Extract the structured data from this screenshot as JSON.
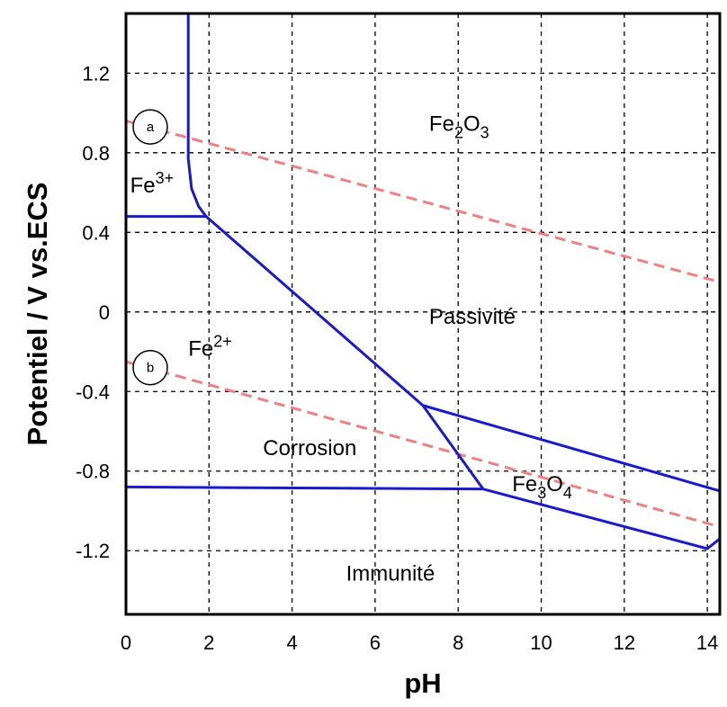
{
  "chart_data": {
    "type": "line",
    "title": "",
    "xlabel": "pH",
    "ylabel": "Potentiel / V vs.ECS",
    "xlim": [
      0,
      14.3
    ],
    "ylim": [
      -1.52,
      1.5
    ],
    "grid": true,
    "x_ticks": [
      {
        "value": 0,
        "label": "0"
      },
      {
        "value": 2,
        "label": "2"
      },
      {
        "value": 4,
        "label": "4"
      },
      {
        "value": 6,
        "label": "6"
      },
      {
        "value": 8,
        "label": "8"
      },
      {
        "value": 10,
        "label": "10"
      },
      {
        "value": 12,
        "label": "12"
      },
      {
        "value": 14,
        "label": "14"
      }
    ],
    "y_ticks": [
      {
        "value": 1.2,
        "label": "1.2"
      },
      {
        "value": 0.8,
        "label": "0.8"
      },
      {
        "value": 0.4,
        "label": "0.4"
      },
      {
        "value": 0,
        "label": "0"
      },
      {
        "value": -0.4,
        "label": "-0.4"
      },
      {
        "value": -0.8,
        "label": "-0.8"
      },
      {
        "value": -1.2,
        "label": "-1.2"
      }
    ],
    "boundaries": [
      {
        "name": "fe3-fe2o3",
        "points": [
          [
            1.5,
            1.5
          ],
          [
            1.5,
            0.77
          ],
          [
            1.58,
            0.62
          ],
          [
            1.75,
            0.53
          ],
          [
            1.93,
            0.48
          ]
        ]
      },
      {
        "name": "fe3-fe2",
        "points": [
          [
            0,
            0.48
          ],
          [
            1.93,
            0.48
          ]
        ]
      },
      {
        "name": "fe2-fe2o3",
        "points": [
          [
            1.93,
            0.48
          ],
          [
            7.15,
            -0.47
          ]
        ]
      },
      {
        "name": "fe2-fe3o4",
        "points": [
          [
            7.15,
            -0.47
          ],
          [
            8.6,
            -0.89
          ]
        ]
      },
      {
        "name": "fe3o4-fe2o3",
        "points": [
          [
            7.15,
            -0.47
          ],
          [
            14.3,
            -0.9
          ]
        ]
      },
      {
        "name": "fe-fe2",
        "points": [
          [
            0,
            -0.88
          ],
          [
            8.6,
            -0.89
          ]
        ]
      },
      {
        "name": "fe-fe3o4",
        "points": [
          [
            8.6,
            -0.89
          ],
          [
            14.0,
            -1.19
          ],
          [
            14.3,
            -1.14
          ]
        ]
      },
      {
        "name": "right-edge",
        "points": [
          [
            14.3,
            -0.9
          ],
          [
            14.3,
            -1.2
          ]
        ]
      }
    ],
    "reference_lines": [
      {
        "label": "a",
        "points": [
          [
            0,
            0.96
          ],
          [
            14.3,
            0.15
          ]
        ],
        "color": "#f08080",
        "style": "dashed"
      },
      {
        "label": "b",
        "points": [
          [
            0,
            -0.25
          ],
          [
            14.3,
            -1.08
          ]
        ],
        "color": "#f08080",
        "style": "dashed"
      }
    ],
    "regions": [
      {
        "key": "fe2o3",
        "base": "Fe",
        "parts": [
          {
            "text": "2",
            "sub": true
          },
          {
            "text": "O",
            "sub": false
          },
          {
            "text": "3",
            "sub": true
          }
        ],
        "x": 7.3,
        "y": 0.91
      },
      {
        "key": "fe3",
        "base": "Fe",
        "parts": [
          {
            "text": "3+",
            "sup": true
          }
        ],
        "x": 0.1,
        "y": 0.6
      },
      {
        "key": "passivite",
        "base": "Passivité",
        "parts": [],
        "x": 7.3,
        "y": -0.06
      },
      {
        "key": "fe2",
        "base": "Fe",
        "parts": [
          {
            "text": "2+",
            "sup": true
          }
        ],
        "x": 1.5,
        "y": -0.22
      },
      {
        "key": "corrosion",
        "base": "Corrosion",
        "parts": [],
        "x": 3.3,
        "y": -0.72
      },
      {
        "key": "fe3o4",
        "base": "Fe",
        "parts": [
          {
            "text": "3",
            "sub": true
          },
          {
            "text": "O",
            "sub": false
          },
          {
            "text": "4",
            "sub": true
          }
        ],
        "x": 9.3,
        "y": -0.9
      },
      {
        "key": "immunite",
        "base": "Immunité",
        "parts": [],
        "x": 5.3,
        "y": -1.35
      }
    ],
    "colors": {
      "boundary": "#1a1acd",
      "reference": "#f08080",
      "grid": "#000000"
    }
  }
}
